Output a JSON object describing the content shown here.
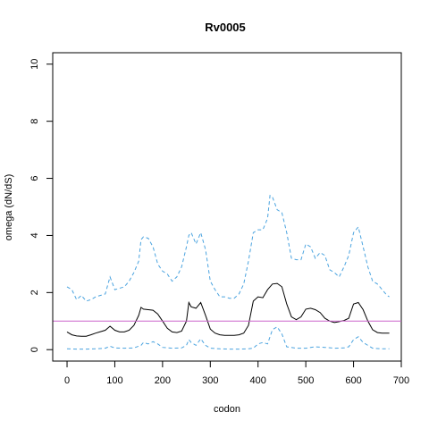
{
  "chart_data": {
    "type": "line",
    "title": "Rv0005",
    "xlabel": "codon",
    "ylabel": "omega (dN/dS)",
    "xlim": [
      -30,
      700
    ],
    "ylim": [
      -0.4,
      10.4
    ],
    "xticks": [
      0,
      100,
      200,
      300,
      400,
      500,
      600,
      700
    ],
    "yticks": [
      0,
      2,
      4,
      6,
      8,
      10
    ],
    "grid": false,
    "reference_line": {
      "y": 1,
      "color": "#cc66cc"
    },
    "series": [
      {
        "style": "solid",
        "color": "#000000",
        "x": [
          0,
          10,
          20,
          30,
          40,
          50,
          60,
          70,
          80,
          90,
          100,
          110,
          120,
          130,
          140,
          150,
          155,
          160,
          170,
          180,
          190,
          200,
          210,
          220,
          230,
          240,
          250,
          255,
          260,
          270,
          280,
          290,
          300,
          310,
          320,
          330,
          340,
          350,
          360,
          370,
          380,
          390,
          400,
          410,
          420,
          430,
          440,
          450,
          460,
          470,
          480,
          490,
          500,
          510,
          520,
          530,
          540,
          550,
          560,
          570,
          580,
          590,
          600,
          610,
          620,
          630,
          640,
          650,
          660,
          670,
          675
        ],
        "values": [
          0.62,
          0.52,
          0.48,
          0.47,
          0.47,
          0.52,
          0.58,
          0.63,
          0.68,
          0.82,
          0.68,
          0.62,
          0.62,
          0.68,
          0.85,
          1.2,
          1.48,
          1.42,
          1.4,
          1.38,
          1.25,
          1.0,
          0.75,
          0.62,
          0.6,
          0.65,
          1.0,
          1.65,
          1.5,
          1.45,
          1.65,
          1.2,
          0.72,
          0.58,
          0.52,
          0.5,
          0.5,
          0.5,
          0.52,
          0.58,
          0.85,
          1.7,
          1.85,
          1.82,
          2.1,
          2.3,
          2.32,
          2.2,
          1.6,
          1.15,
          1.05,
          1.15,
          1.42,
          1.45,
          1.4,
          1.3,
          1.1,
          1.0,
          0.95,
          0.98,
          1.02,
          1.1,
          1.6,
          1.65,
          1.4,
          1.0,
          0.7,
          0.6,
          0.58,
          0.58,
          0.58
        ]
      },
      {
        "style": "dashed",
        "color": "#4aa3df",
        "x": [
          0,
          10,
          20,
          30,
          40,
          50,
          60,
          70,
          80,
          90,
          100,
          110,
          120,
          130,
          140,
          150,
          155,
          160,
          170,
          180,
          190,
          200,
          210,
          220,
          230,
          240,
          250,
          255,
          260,
          270,
          280,
          290,
          300,
          310,
          320,
          330,
          340,
          350,
          360,
          370,
          380,
          390,
          400,
          410,
          420,
          425,
          430,
          440,
          450,
          460,
          470,
          480,
          490,
          500,
          510,
          520,
          530,
          540,
          550,
          560,
          570,
          580,
          590,
          600,
          610,
          620,
          630,
          640,
          650,
          660,
          670,
          675
        ],
        "values": [
          2.2,
          2.1,
          1.75,
          1.9,
          1.7,
          1.75,
          1.85,
          1.9,
          1.95,
          2.55,
          2.1,
          2.15,
          2.2,
          2.4,
          2.7,
          3.1,
          3.85,
          3.95,
          3.9,
          3.6,
          3.0,
          2.75,
          2.65,
          2.4,
          2.55,
          2.9,
          3.6,
          4.0,
          4.1,
          3.7,
          4.1,
          3.5,
          2.4,
          2.1,
          1.85,
          1.85,
          1.8,
          1.8,
          1.95,
          2.3,
          3.1,
          4.1,
          4.2,
          4.2,
          4.6,
          5.4,
          5.35,
          4.9,
          4.8,
          4.1,
          3.2,
          3.15,
          3.15,
          3.7,
          3.6,
          3.2,
          3.4,
          3.3,
          2.8,
          2.7,
          2.55,
          2.9,
          3.3,
          4.1,
          4.3,
          3.6,
          2.9,
          2.4,
          2.3,
          2.1,
          1.9,
          1.85
        ]
      },
      {
        "style": "dashed",
        "color": "#4aa3df",
        "x": [
          0,
          20,
          40,
          60,
          80,
          90,
          100,
          120,
          140,
          155,
          160,
          170,
          180,
          190,
          200,
          220,
          240,
          250,
          255,
          260,
          270,
          280,
          290,
          300,
          320,
          340,
          360,
          380,
          390,
          400,
          410,
          420,
          430,
          440,
          450,
          460,
          480,
          500,
          520,
          540,
          560,
          580,
          590,
          600,
          610,
          620,
          640,
          660,
          675
        ],
        "values": [
          0.03,
          0.02,
          0.02,
          0.03,
          0.05,
          0.12,
          0.06,
          0.05,
          0.06,
          0.15,
          0.25,
          0.2,
          0.28,
          0.2,
          0.08,
          0.05,
          0.06,
          0.15,
          0.35,
          0.25,
          0.15,
          0.38,
          0.15,
          0.05,
          0.03,
          0.02,
          0.02,
          0.03,
          0.05,
          0.2,
          0.25,
          0.2,
          0.7,
          0.8,
          0.55,
          0.1,
          0.05,
          0.05,
          0.1,
          0.08,
          0.05,
          0.06,
          0.1,
          0.35,
          0.45,
          0.25,
          0.05,
          0.03,
          0.03
        ]
      }
    ]
  }
}
